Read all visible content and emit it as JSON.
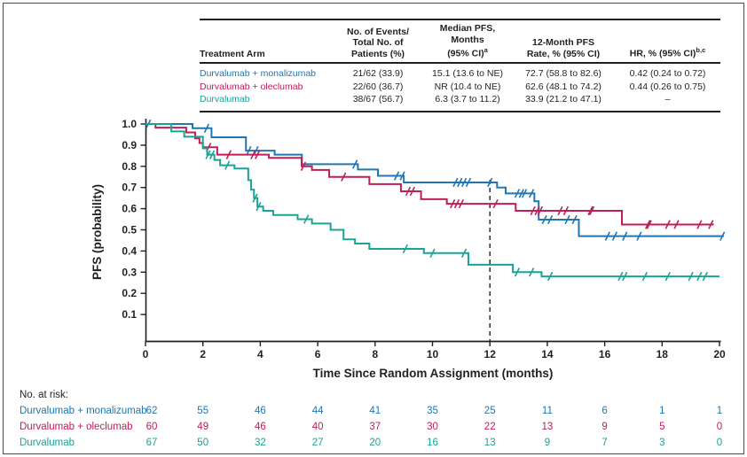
{
  "summary_table": {
    "header": {
      "arm": {
        "l1": "Treatment Arm"
      },
      "events": {
        "l1": "No. of Events/",
        "l2": "Total No. of",
        "l3": "Patients (%)"
      },
      "median": {
        "l1": "Median PFS,",
        "l2": "Months",
        "l3": "(95% CI)",
        "sup": "a"
      },
      "rate": {
        "l1": "12-Month PFS",
        "l2": "Rate, % (95% CI)"
      },
      "hr": {
        "l1": "HR, % (95% CI)",
        "sup": "b,c"
      }
    },
    "rows": [
      {
        "arm": "Durvalumab + monalizumab",
        "color": "#2076b4",
        "events": "21/62 (33.9)",
        "median": "15.1 (13.6 to NE)",
        "rate": "72.7 (58.8 to 82.6)",
        "hr": "0.42 (0.24 to 0.72)"
      },
      {
        "arm": "Durvalumab + oleclumab",
        "color": "#c01e56",
        "events": "22/60 (36.7)",
        "median": "NR (10.4 to NE)",
        "rate": "62.6 (48.1 to 74.2)",
        "hr": "0.44 (0.26 to 0.75)"
      },
      {
        "arm": "Durvalumab",
        "color": "#1aa396",
        "events": "38/67 (56.7)",
        "median": "6.3 (3.7 to 11.2)",
        "rate": "33.9 (21.2 to 47.1)",
        "hr": "–"
      }
    ]
  },
  "chart_data": {
    "type": "line",
    "subtype": "kaplan-meier-step",
    "title": "",
    "xlabel": "Time Since Random Assignment (months)",
    "ylabel": "PFS (probability)",
    "xlim": [
      0,
      20
    ],
    "ylim": [
      0,
      1.0
    ],
    "x_ticks": [
      0,
      2,
      4,
      6,
      8,
      10,
      12,
      14,
      16,
      18,
      20
    ],
    "y_ticks": [
      0.1,
      0.2,
      0.3,
      0.4,
      0.5,
      0.6,
      0.7,
      0.8,
      0.9,
      1.0
    ],
    "grid": false,
    "reference_line_x": 12,
    "axis_color": "#231f20",
    "series": [
      {
        "name": "Durvalumab + monalizumab",
        "color": "#2076b4",
        "end_month": 20.15,
        "steps": [
          [
            0,
            1.0
          ],
          [
            1.64,
            0.98
          ],
          [
            2.3,
            0.937
          ],
          [
            3.5,
            0.874
          ],
          [
            4.5,
            0.855
          ],
          [
            5.45,
            0.81
          ],
          [
            7.4,
            0.785
          ],
          [
            8.1,
            0.755
          ],
          [
            9.0,
            0.724
          ],
          [
            12.25,
            0.7
          ],
          [
            12.55,
            0.672
          ],
          [
            13.55,
            0.635
          ],
          [
            13.7,
            0.548
          ],
          [
            15.1,
            0.47
          ]
        ],
        "censor_months": [
          0.1,
          2.13,
          3.6,
          3.85,
          7.3,
          8.75,
          8.95,
          10.8,
          10.95,
          11.1,
          11.25,
          12.0,
          12.95,
          13.1,
          13.2,
          13.45,
          13.9,
          14.1,
          14.7,
          14.95,
          16.1,
          16.35,
          16.7,
          17.2,
          20.1
        ]
      },
      {
        "name": "Durvalumab + oleclumab",
        "color": "#c01e56",
        "end_month": 19.8,
        "steps": [
          [
            0,
            1.0
          ],
          [
            0.35,
            0.983
          ],
          [
            1.42,
            0.96
          ],
          [
            1.73,
            0.932
          ],
          [
            1.88,
            0.91
          ],
          [
            2.0,
            0.89
          ],
          [
            2.5,
            0.855
          ],
          [
            4.3,
            0.84
          ],
          [
            5.44,
            0.8
          ],
          [
            5.8,
            0.783
          ],
          [
            6.4,
            0.75
          ],
          [
            7.8,
            0.716
          ],
          [
            8.9,
            0.682
          ],
          [
            9.6,
            0.645
          ],
          [
            10.5,
            0.623
          ],
          [
            12.9,
            0.59
          ],
          [
            16.6,
            0.525
          ]
        ],
        "censor_months": [
          2.2,
          2.9,
          3.75,
          3.9,
          5.5,
          6.9,
          9.15,
          9.3,
          10.7,
          10.85,
          11.0,
          12.2,
          13.5,
          13.65,
          13.75,
          14.45,
          14.65,
          15.5,
          15.55,
          17.5,
          17.55,
          18.2,
          18.5,
          19.3,
          19.7
        ]
      },
      {
        "name": "Durvalumab",
        "color": "#1aa396",
        "end_month": 20.0,
        "steps": [
          [
            0,
            1.0
          ],
          [
            0.9,
            0.965
          ],
          [
            1.35,
            0.94
          ],
          [
            2.0,
            0.885
          ],
          [
            2.15,
            0.855
          ],
          [
            2.4,
            0.83
          ],
          [
            2.6,
            0.805
          ],
          [
            3.1,
            0.79
          ],
          [
            3.58,
            0.735
          ],
          [
            3.68,
            0.69
          ],
          [
            3.78,
            0.65
          ],
          [
            3.9,
            0.61
          ],
          [
            4.1,
            0.59
          ],
          [
            4.45,
            0.57
          ],
          [
            5.3,
            0.55
          ],
          [
            5.8,
            0.53
          ],
          [
            6.45,
            0.5
          ],
          [
            6.9,
            0.455
          ],
          [
            7.3,
            0.435
          ],
          [
            7.8,
            0.41
          ],
          [
            9.7,
            0.39
          ],
          [
            11.25,
            0.335
          ],
          [
            12.8,
            0.3
          ],
          [
            13.8,
            0.28
          ]
        ],
        "censor_months": [
          2.18,
          2.32,
          2.85,
          3.82,
          3.94,
          5.6,
          9.05,
          10.0,
          11.1,
          12.95,
          13.45,
          14.1,
          16.55,
          16.7,
          17.4,
          18.2,
          19.0,
          19.3,
          19.5
        ]
      }
    ],
    "at_risk": {
      "label": "No. at risk:",
      "months": [
        0,
        2,
        4,
        6,
        8,
        10,
        12,
        14,
        16,
        18,
        20
      ],
      "rows": [
        {
          "name": "Durvalumab + monalizumab",
          "color": "#2076b4",
          "values": [
            62,
            55,
            46,
            44,
            41,
            35,
            25,
            11,
            6,
            1,
            1
          ]
        },
        {
          "name": "Durvalumab + oleclumab",
          "color": "#c01e56",
          "values": [
            60,
            49,
            46,
            40,
            37,
            30,
            22,
            13,
            9,
            5,
            0
          ]
        },
        {
          "name": "Durvalumab",
          "color": "#1aa396",
          "values": [
            67,
            50,
            32,
            27,
            20,
            16,
            13,
            9,
            7,
            3,
            0
          ]
        }
      ]
    }
  }
}
